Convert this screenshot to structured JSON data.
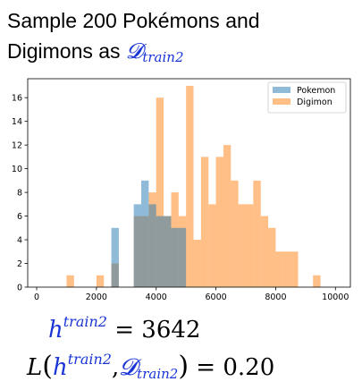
{
  "header": {
    "line1": "Sample 200 Pokémons and",
    "line2_prefix": "Digimons as ",
    "dataset_symbol": "𝓓",
    "dataset_sub": "train2"
  },
  "equations": {
    "h_symbol": "h",
    "h_sup": "train2",
    "h_eq": " = 3642",
    "loss_L": "L",
    "loss_paren_open": "(",
    "loss_h": "h",
    "loss_h_sup": "train2",
    "loss_comma": ",",
    "loss_D": "𝓓",
    "loss_D_sub": "train2",
    "loss_paren_close": ")",
    "loss_eq": " = 0.20"
  },
  "chart_data": {
    "type": "bar",
    "subtype": "histogram",
    "bin_width": 250,
    "xlim": [
      -300,
      10500
    ],
    "ylim": [
      0,
      17.6
    ],
    "xticks": [
      0,
      2000,
      4000,
      6000,
      8000,
      10000
    ],
    "yticks": [
      0,
      2,
      4,
      6,
      8,
      10,
      12,
      14,
      16
    ],
    "legend_position": "top-right",
    "series": [
      {
        "name": "Pokemon",
        "color": "#1f77b4",
        "bins": [
          {
            "x": 2500,
            "y": 5
          },
          {
            "x": 3250,
            "y": 7
          },
          {
            "x": 3500,
            "y": 9
          },
          {
            "x": 3750,
            "y": 7
          },
          {
            "x": 4000,
            "y": 6
          },
          {
            "x": 4250,
            "y": 6
          },
          {
            "x": 4500,
            "y": 5
          },
          {
            "x": 4750,
            "y": 5
          }
        ]
      },
      {
        "name": "Digimon",
        "color": "#ff7f0e",
        "bins": [
          {
            "x": 1000,
            "y": 1
          },
          {
            "x": 2000,
            "y": 1
          },
          {
            "x": 2500,
            "y": 2
          },
          {
            "x": 3250,
            "y": 6
          },
          {
            "x": 3500,
            "y": 6
          },
          {
            "x": 3750,
            "y": 8
          },
          {
            "x": 4000,
            "y": 16
          },
          {
            "x": 4250,
            "y": 6
          },
          {
            "x": 4500,
            "y": 8
          },
          {
            "x": 4750,
            "y": 6
          },
          {
            "x": 5000,
            "y": 17
          },
          {
            "x": 5250,
            "y": 4
          },
          {
            "x": 5500,
            "y": 11
          },
          {
            "x": 5750,
            "y": 7
          },
          {
            "x": 6000,
            "y": 11
          },
          {
            "x": 6250,
            "y": 12
          },
          {
            "x": 6500,
            "y": 9
          },
          {
            "x": 6750,
            "y": 7
          },
          {
            "x": 7000,
            "y": 7
          },
          {
            "x": 7250,
            "y": 9
          },
          {
            "x": 7500,
            "y": 6
          },
          {
            "x": 7750,
            "y": 5
          },
          {
            "x": 8000,
            "y": 3
          },
          {
            "x": 8250,
            "y": 3
          },
          {
            "x": 8500,
            "y": 3
          },
          {
            "x": 9250,
            "y": 1
          }
        ]
      }
    ]
  }
}
